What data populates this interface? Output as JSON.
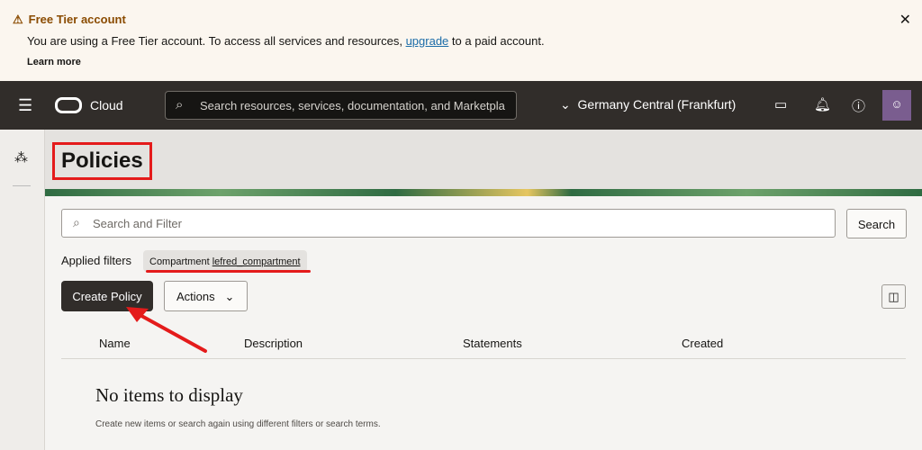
{
  "banner": {
    "title": "Free Tier account",
    "message_pre": "You are using a Free Tier account. To access all services and resources,",
    "link": "upgrade",
    "message_post": "to a paid account.",
    "learn_more": "Learn more"
  },
  "nav": {
    "brand": "Cloud",
    "search_placeholder": "Search resources, services, documentation, and Marketpla",
    "region": "Germany Central (Frankfurt)"
  },
  "page": {
    "title": "Policies",
    "search_placeholder": "Search and Filter",
    "search_button": "Search",
    "applied_filters_label": "Applied filters",
    "filter_key": "Compartment",
    "filter_value": "lefred_compartment",
    "create_button": "Create Policy",
    "actions_button": "Actions"
  },
  "table": {
    "columns": [
      "Name",
      "Description",
      "Statements",
      "Created"
    ],
    "empty_title": "No items to display",
    "empty_hint": "Create new items or search again using different filters or search terms."
  },
  "colors": {
    "accent": "#312d2a",
    "annotation": "#e41b1b"
  }
}
